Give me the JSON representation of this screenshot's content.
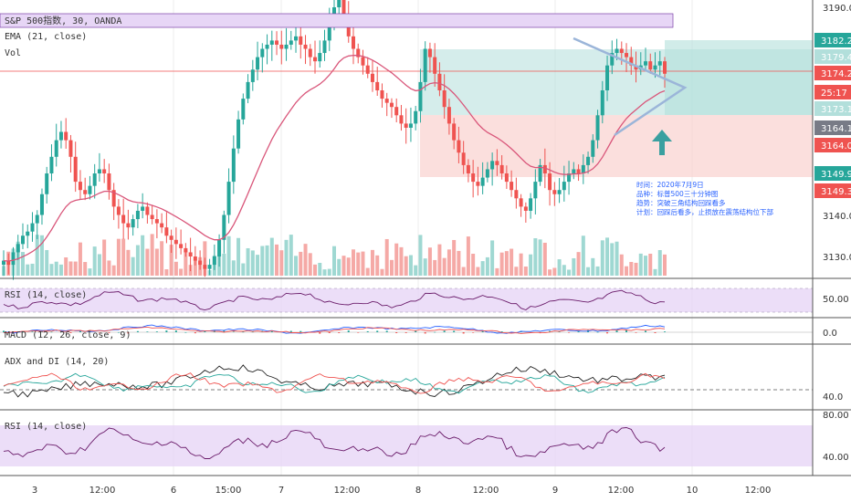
{
  "header": {
    "symbol_title": "S&P 500指数, 30, OANDA",
    "ema_label": "EMA (21, close)",
    "vol_label": "Vol"
  },
  "panes": {
    "rsi1_label": "RSI (14, close)",
    "macd_label": "MACD (12, 26, close, 9)",
    "adx_label": "ADX and DI (14, 20)",
    "rsi2_label": "RSI (14, close)"
  },
  "note_lines": [
    "时间：2020年7月9日",
    "品种：标普500三十分钟图",
    "趋势：突破三角结构回踩看多",
    "计划：回踩后看多，止损放在震荡结构位下部"
  ],
  "colors": {
    "up": "#26a69a",
    "down": "#ef5350",
    "ema": "#d9567a",
    "rsi_band": "#e7d6f6",
    "long_zone": "#b2dfdb",
    "short_zone": "#f8c9c7",
    "triangle": "#9bb5d9",
    "arrow": "#3aa0a0",
    "note": "#2962ff"
  },
  "chart_data": [
    {
      "type": "candlestick",
      "title": "S&P 500指数, 30, OANDA",
      "price_axis_ticks": [
        3190.0,
        3130.0
      ],
      "price_tags": [
        {
          "value": "3182.2",
          "color": "#26a69a"
        },
        {
          "value": "3179.4",
          "color": "#b2dfdb"
        },
        {
          "value": "3174.2",
          "color": "#ef5350"
        },
        {
          "value": "25:17",
          "color": "#ef5350"
        },
        {
          "value": "3173.1",
          "color": "#b2dfdb"
        },
        {
          "value": "3164.1",
          "color": "#787b86"
        },
        {
          "value": "3164.0",
          "color": "#ef5350"
        },
        {
          "value": "3149.9",
          "color": "#26a69a"
        },
        {
          "value": "3149.3",
          "color": "#ef5350"
        },
        {
          "value": "3140.0",
          "color": "none"
        }
      ],
      "x_tick_labels": [
        "3",
        "12:00",
        "6",
        "15:00",
        "7",
        "12:00",
        "8",
        "12:00",
        "9",
        "12:00",
        "10",
        "12:00"
      ],
      "series": [
        {
          "name": "EMA (21, close)"
        },
        {
          "name": "Vol"
        }
      ],
      "ohlc_close": [
        3129,
        3128,
        3131,
        3133,
        3135,
        3136,
        3138,
        3140,
        3145,
        3150,
        3154,
        3158,
        3160,
        3158,
        3154,
        3148,
        3146,
        3145,
        3147,
        3150,
        3151,
        3150,
        3146,
        3142,
        3140,
        3138,
        3137,
        3139,
        3141,
        3142,
        3140,
        3139,
        3138,
        3137,
        3135,
        3134,
        3133,
        3132,
        3131,
        3130,
        3129,
        3128,
        3127,
        3128,
        3130,
        3134,
        3140,
        3148,
        3156,
        3163,
        3168,
        3172,
        3175,
        3178,
        3180,
        3181,
        3182,
        3181,
        3180,
        3181,
        3182,
        3183,
        3181,
        3180,
        3178,
        3177,
        3179,
        3182,
        3186,
        3190,
        3193,
        3188,
        3183,
        3180,
        3178,
        3176,
        3174,
        3172,
        3170,
        3168,
        3167,
        3166,
        3164,
        3162,
        3161,
        3162,
        3165,
        3172,
        3180,
        3178,
        3174,
        3170,
        3166,
        3162,
        3158,
        3155,
        3152,
        3150,
        3148,
        3147,
        3149,
        3151,
        3153,
        3152,
        3150,
        3148,
        3146,
        3144,
        3142,
        3141,
        3144,
        3148,
        3152,
        3150,
        3146,
        3145,
        3146,
        3148,
        3150,
        3151,
        3150,
        3152,
        3154,
        3158,
        3164,
        3170,
        3176,
        3179,
        3180,
        3179,
        3178,
        3176,
        3175,
        3176,
        3177,
        3175,
        3176,
        3177,
        3174
      ],
      "rsi1_range": [
        30,
        70
      ],
      "macd_zero": 0.0,
      "adx_level": 40.0,
      "rsi2_ticks": [
        80.0,
        40.0
      ]
    }
  ]
}
